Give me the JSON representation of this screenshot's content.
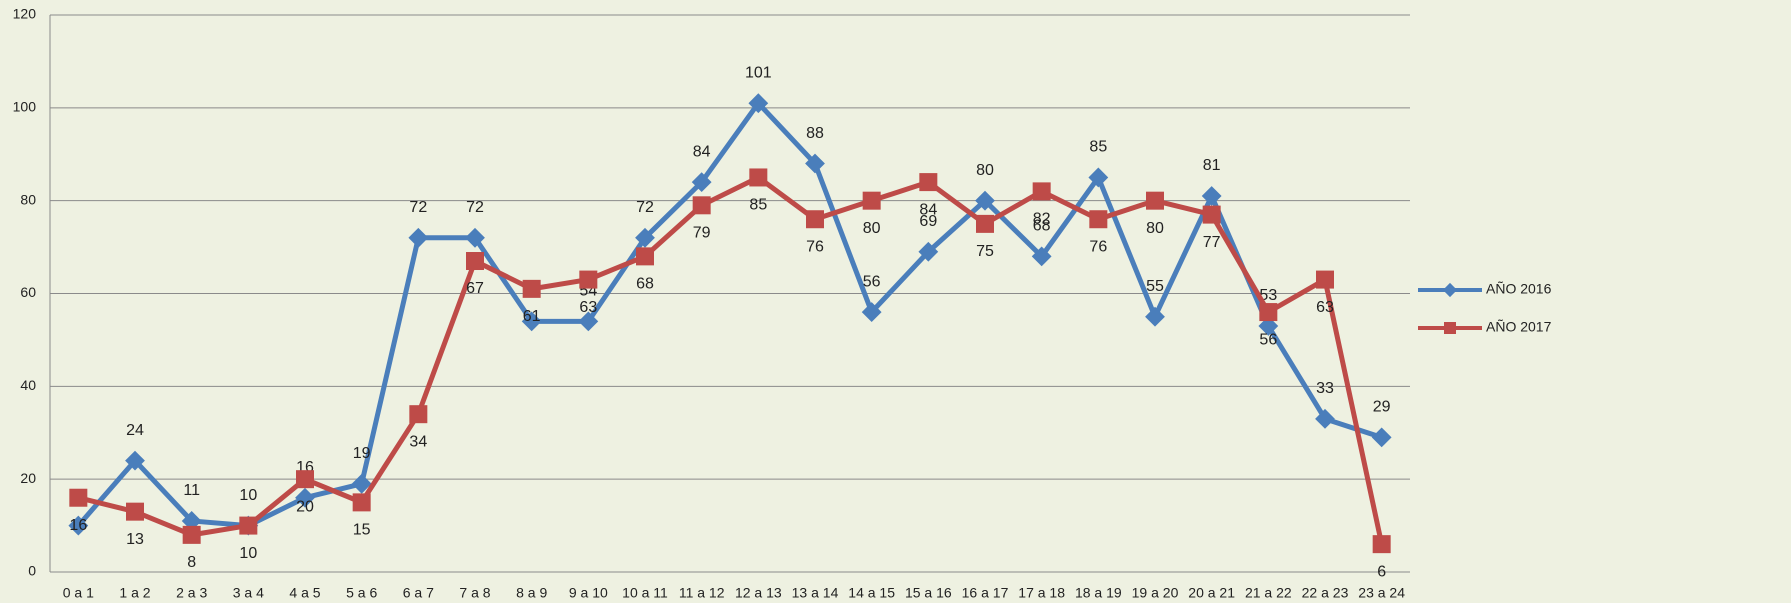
{
  "chart_data": {
    "type": "line",
    "categories": [
      "0 a 1",
      "1 a 2",
      "2 a 3",
      "3 a 4",
      "4 a 5",
      "5 a 6",
      "6 a 7",
      "7 a 8",
      "8 a 9",
      "9 a 10",
      "10 a 11",
      "11 a 12",
      "12 a 13",
      "13 a 14",
      "14 a 15",
      "15 a 16",
      "16 a 17",
      "17 a 18",
      "18 a 19",
      "19 a 20",
      "20 a 21",
      "21 a 22",
      "22 a 23",
      "23 a 24"
    ],
    "series": [
      {
        "name": "AÑO 2016",
        "color": "#4a7ebb",
        "values": [
          10,
          24,
          11,
          10,
          16,
          19,
          72,
          72,
          54,
          54,
          72,
          84,
          101,
          88,
          56,
          69,
          80,
          68,
          85,
          55,
          81,
          53,
          33,
          29
        ]
      },
      {
        "name": "AÑO 2017",
        "color": "#be4b48",
        "values": [
          16,
          13,
          8,
          10,
          20,
          15,
          34,
          67,
          61,
          63,
          68,
          79,
          85,
          76,
          80,
          84,
          75,
          82,
          76,
          80,
          77,
          56,
          63,
          6
        ]
      }
    ],
    "ylim": [
      0,
      120
    ],
    "yticks": [
      0,
      20,
      40,
      60,
      80,
      100,
      120
    ],
    "grid": true,
    "legend": "right"
  }
}
